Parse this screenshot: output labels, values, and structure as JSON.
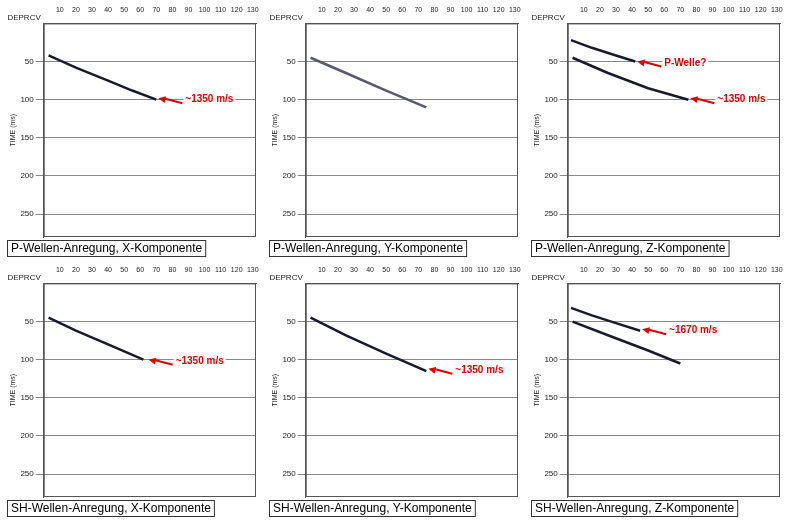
{
  "chart_data": [
    {
      "type": "line",
      "title": "P-Wellen-Anregung, X-Komponente",
      "x_label": "DEPRCV",
      "y_label": "TIME (ms)",
      "xlim": [
        0,
        132
      ],
      "xticks": [
        10,
        20,
        30,
        40,
        50,
        60,
        70,
        80,
        90,
        100,
        110,
        120,
        130
      ],
      "ylim": [
        0,
        280
      ],
      "yticks": [
        50,
        100,
        150,
        200,
        250
      ],
      "grid": true,
      "series": [
        {
          "color": "#1a1a2e",
          "x": [
            3,
            20,
            40,
            55,
            70
          ],
          "values": [
            42,
            58,
            75,
            88,
            100
          ]
        }
      ],
      "annotations": [
        {
          "text": "~1350 m/s",
          "x": 70,
          "y": 98,
          "color": "#e00000"
        }
      ]
    },
    {
      "type": "line",
      "title": "P-Wellen-Anregung, Y-Komponente",
      "x_label": "DEPRCV",
      "y_label": "TIME (ms)",
      "xlim": [
        0,
        132
      ],
      "xticks": [
        10,
        20,
        30,
        40,
        50,
        60,
        70,
        80,
        90,
        100,
        110,
        120,
        130
      ],
      "ylim": [
        0,
        280
      ],
      "yticks": [
        50,
        100,
        150,
        200,
        250
      ],
      "grid": true,
      "series": [
        {
          "color": "#5a5a6e",
          "x": [
            3,
            25,
            50,
            75
          ],
          "values": [
            45,
            65,
            88,
            110
          ]
        }
      ],
      "annotations": []
    },
    {
      "type": "line",
      "title": "P-Wellen-Anregung, Z-Komponente",
      "x_label": "DEPRCV",
      "y_label": "TIME (ms)",
      "xlim": [
        0,
        132
      ],
      "xticks": [
        10,
        20,
        30,
        40,
        50,
        60,
        70,
        80,
        90,
        100,
        110,
        120,
        130
      ],
      "ylim": [
        0,
        280
      ],
      "yticks": [
        50,
        100,
        150,
        200,
        250
      ],
      "grid": true,
      "series": [
        {
          "color": "#1a1a2e",
          "x": [
            2,
            15,
            30,
            42
          ],
          "values": [
            22,
            32,
            42,
            50
          ]
        },
        {
          "color": "#1a1a2e",
          "x": [
            3,
            25,
            50,
            75
          ],
          "values": [
            45,
            65,
            85,
            100
          ]
        }
      ],
      "annotations": [
        {
          "text": "P-Welle?",
          "x": 42,
          "y": 50,
          "color": "#e00000"
        },
        {
          "text": "~1350 m/s",
          "x": 75,
          "y": 98,
          "color": "#e00000"
        }
      ]
    },
    {
      "type": "line",
      "title": "SH-Wellen-Anregung, X-Komponente",
      "x_label": "DEPRCV",
      "y_label": "TIME (ms)",
      "xlim": [
        0,
        132
      ],
      "xticks": [
        10,
        20,
        30,
        40,
        50,
        60,
        70,
        80,
        90,
        100,
        110,
        120,
        130
      ],
      "ylim": [
        0,
        280
      ],
      "yticks": [
        50,
        100,
        150,
        200,
        250
      ],
      "grid": true,
      "series": [
        {
          "color": "#1a1a2e",
          "x": [
            3,
            20,
            40,
            62
          ],
          "values": [
            45,
            62,
            80,
            100
          ]
        }
      ],
      "annotations": [
        {
          "text": "~1350 m/s",
          "x": 64,
          "y": 100,
          "color": "#e00000"
        }
      ]
    },
    {
      "type": "line",
      "title": "SH-Wellen-Anregung, Y-Komponente",
      "x_label": "DEPRCV",
      "y_label": "TIME (ms)",
      "xlim": [
        0,
        132
      ],
      "xticks": [
        10,
        20,
        30,
        40,
        50,
        60,
        70,
        80,
        90,
        100,
        110,
        120,
        130
      ],
      "ylim": [
        0,
        280
      ],
      "yticks": [
        50,
        100,
        150,
        200,
        250
      ],
      "grid": true,
      "series": [
        {
          "color": "#1a1a2e",
          "x": [
            3,
            25,
            50,
            75
          ],
          "values": [
            45,
            68,
            92,
            115
          ]
        }
      ],
      "annotations": [
        {
          "text": "~1350 m/s",
          "x": 75,
          "y": 112,
          "color": "#e00000"
        }
      ]
    },
    {
      "type": "line",
      "title": "SH-Wellen-Anregung, Z-Komponente",
      "x_label": "DEPRCV",
      "y_label": "TIME (ms)",
      "xlim": [
        0,
        132
      ],
      "xticks": [
        10,
        20,
        30,
        40,
        50,
        60,
        70,
        80,
        90,
        100,
        110,
        120,
        130
      ],
      "ylim": [
        0,
        280
      ],
      "yticks": [
        50,
        100,
        150,
        200,
        250
      ],
      "grid": true,
      "series": [
        {
          "color": "#1a1a2e",
          "x": [
            2,
            15,
            30,
            45
          ],
          "values": [
            32,
            42,
            52,
            62
          ]
        },
        {
          "color": "#1a1a2e",
          "x": [
            3,
            25,
            50,
            70
          ],
          "values": [
            50,
            68,
            88,
            105
          ]
        }
      ],
      "annotations": [
        {
          "text": "~1670 m/s",
          "x": 45,
          "y": 60,
          "color": "#e00000"
        }
      ]
    }
  ]
}
